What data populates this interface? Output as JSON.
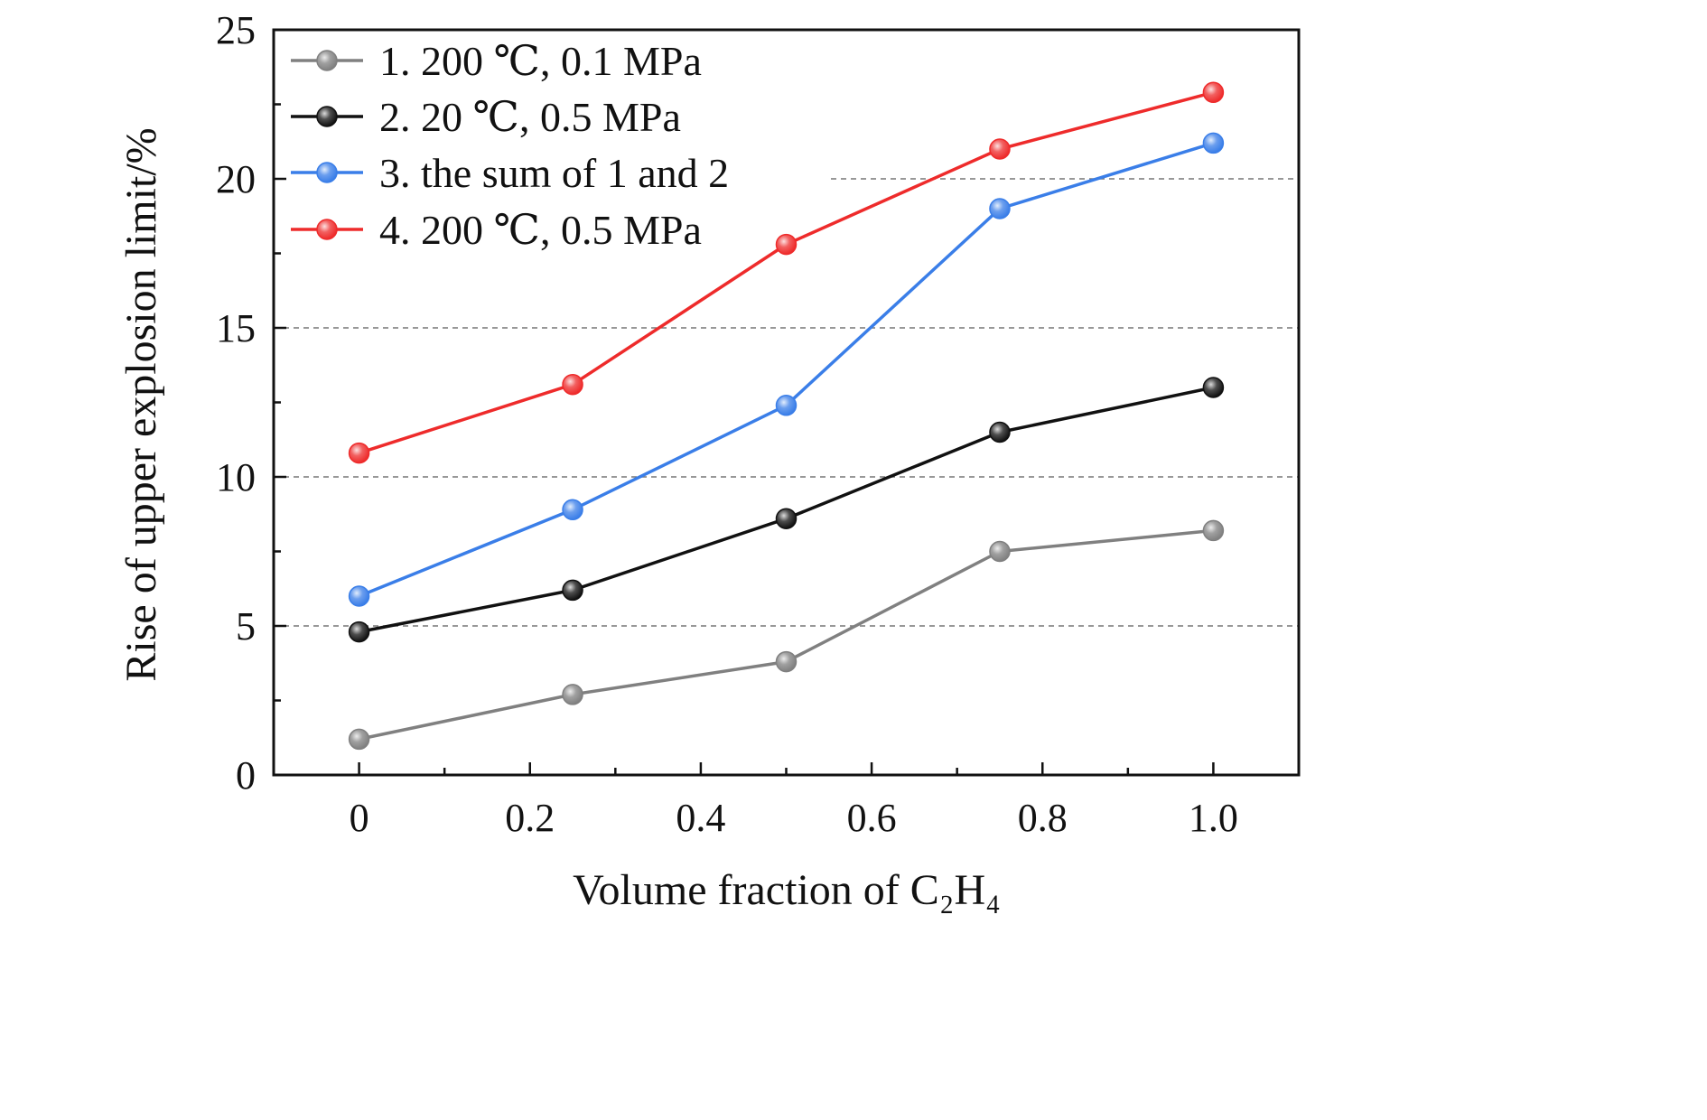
{
  "chart_data": {
    "type": "line",
    "title": "",
    "xlabel": "Volume fraction of C₂H₄",
    "ylabel": "Rise of upper explosion limit/%",
    "xlim": [
      -0.1,
      1.1
    ],
    "ylim": [
      0,
      25
    ],
    "x_ticks": [
      0,
      0.2,
      0.4,
      0.6,
      0.8,
      1.0
    ],
    "x_tick_labels": [
      "0",
      "0.2",
      "0.4",
      "0.6",
      "0.8",
      "1.0"
    ],
    "y_ticks": [
      0,
      5,
      10,
      15,
      20,
      25
    ],
    "y_tick_labels": [
      "0",
      "5",
      "10",
      "15",
      "20",
      "25"
    ],
    "grid": "horizontal dashed",
    "legend_position": "top-left",
    "x": [
      0,
      0.25,
      0.5,
      0.75,
      1.0
    ],
    "series": [
      {
        "name": "1. 200 ℃, 0.1 MPa",
        "color": "#808080",
        "values": [
          1.2,
          2.7,
          3.8,
          7.5,
          8.2
        ]
      },
      {
        "name": "2. 20 ℃, 0.5 MPa",
        "color": "#111111",
        "values": [
          4.8,
          6.2,
          8.6,
          11.5,
          13.0
        ]
      },
      {
        "name": "3. the sum of 1 and 2",
        "color": "#3a7ee8",
        "values": [
          6.0,
          8.9,
          12.4,
          19.0,
          21.2
        ]
      },
      {
        "name": "4. 200 ℃, 0.5 MPa",
        "color": "#ee2b2b",
        "values": [
          10.8,
          13.1,
          17.8,
          21.0,
          22.9
        ]
      }
    ]
  }
}
